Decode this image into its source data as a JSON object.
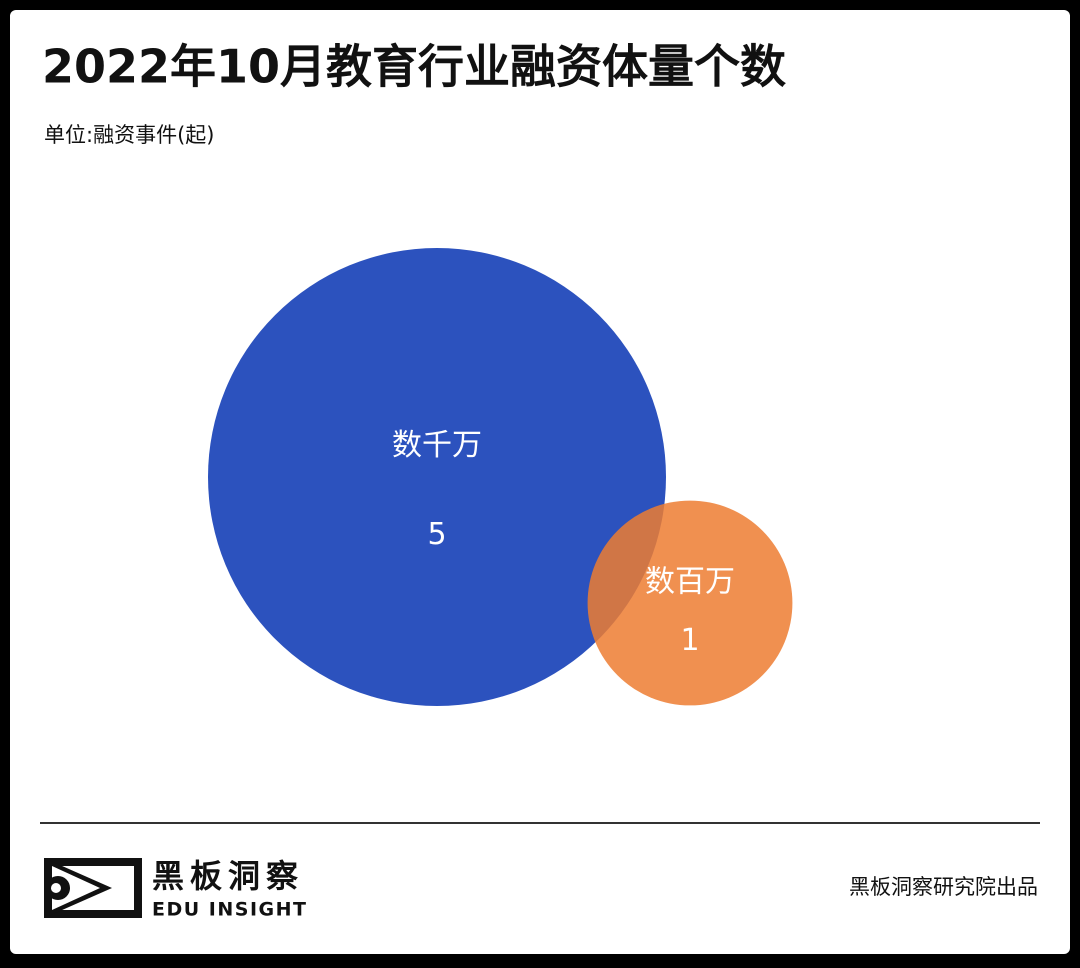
{
  "chart_data": {
    "type": "bubble",
    "title": "2022年10月教育行业融资体量个数",
    "subtitle": "单位:融资事件(起)",
    "categories": [
      "数千万",
      "数百万"
    ],
    "values": [
      5,
      1
    ],
    "colors": [
      "#2c52be",
      "#ed7d31"
    ],
    "brand": "黑板洞察",
    "brand_en": "EDU INSIGHT",
    "source": "黑板洞察研究院出品"
  }
}
